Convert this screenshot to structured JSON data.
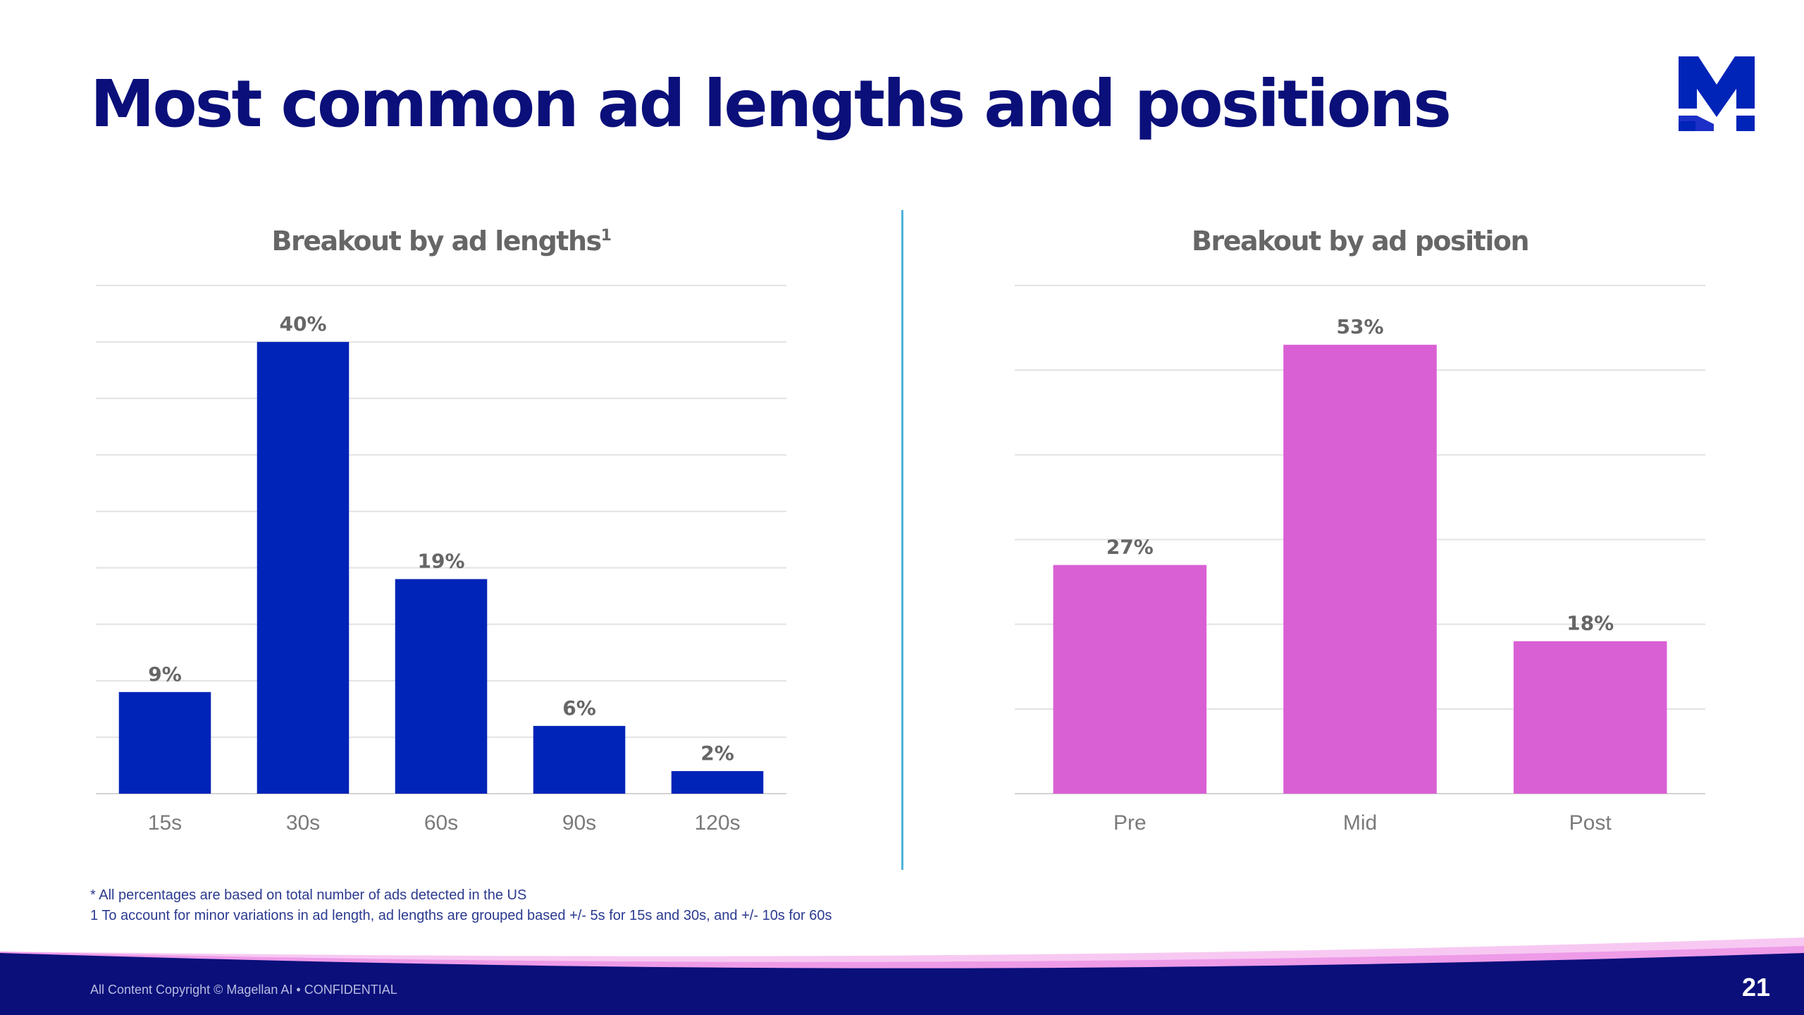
{
  "title": "Most common ad lengths and positions",
  "brand": {
    "logo_name": "M-logo",
    "primary_color": "#0a0f7a",
    "bar_blue": "#0024b8",
    "bar_pink": "#d960d4",
    "divider_color": "#4fb3d9"
  },
  "chart_data": [
    {
      "type": "bar",
      "title": "Breakout by ad lengths",
      "title_superscript": "1",
      "categories": [
        "15s",
        "30s",
        "60s",
        "90s",
        "120s"
      ],
      "values": [
        9,
        40,
        19,
        6,
        2
      ],
      "value_labels": [
        "9%",
        "40%",
        "19%",
        "6%",
        "2%"
      ],
      "ylim": [
        0,
        45
      ],
      "grid_step": 5,
      "grid": true,
      "color": "#0024b8"
    },
    {
      "type": "bar",
      "title": "Breakout by ad position",
      "categories": [
        "Pre",
        "Mid",
        "Post"
      ],
      "values": [
        27,
        53,
        18
      ],
      "value_labels": [
        "27%",
        "53%",
        "18%"
      ],
      "ylim": [
        0,
        60
      ],
      "grid_step": 10,
      "grid": true,
      "color": "#d960d4"
    }
  ],
  "footnotes": [
    "* All percentages are based on total number of ads detected in the US",
    "1 To account for minor variations in ad length, ad lengths are grouped based +/- 5s for 15s and 30s, and +/- 10s for 60s"
  ],
  "footer": {
    "copyright": "All Content Copyright © Magellan AI • CONFIDENTIAL",
    "page_number": "21"
  }
}
